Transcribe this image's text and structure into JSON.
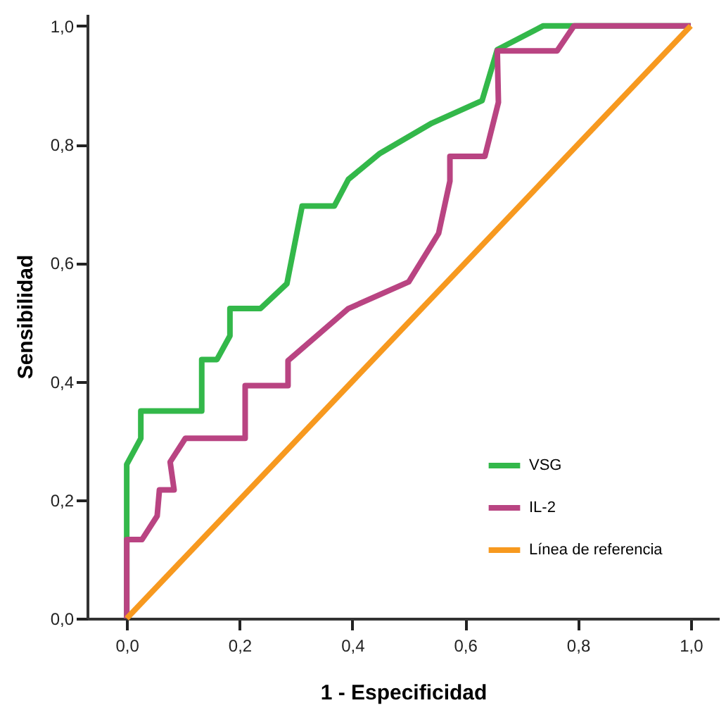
{
  "chart_data": {
    "type": "line",
    "xlabel": "1 - Especificidad",
    "ylabel": "Sensibilidad",
    "xlim": [
      -0.07,
      1.05
    ],
    "ylim": [
      0,
      1.02
    ],
    "xticks": [
      {
        "value": 0,
        "label": "0,0"
      },
      {
        "value": 0.2,
        "label": "0,2"
      },
      {
        "value": 0.4,
        "label": "0,4"
      },
      {
        "value": 0.6,
        "label": "0,6"
      },
      {
        "value": 0.8,
        "label": "0,8"
      },
      {
        "value": 1,
        "label": "1,0"
      }
    ],
    "yticks": [
      {
        "value": 0,
        "label": "0,0"
      },
      {
        "value": 0.2,
        "label": "0,2"
      },
      {
        "value": 0.4,
        "label": "0,4"
      },
      {
        "value": 0.6,
        "label": "0,6"
      },
      {
        "value": 0.8,
        "label": "0,8"
      },
      {
        "value": 1,
        "label": "1,0"
      }
    ],
    "grid": false,
    "legend": "bottom right",
    "marker": "none",
    "line_style": "solid",
    "series": [
      {
        "name": "VSG",
        "color": "#33b84a",
        "x": [
          0,
          0,
          0.025,
          0.025,
          0.133,
          0.133,
          0.16,
          0.183,
          0.183,
          0.237,
          0.284,
          0.311,
          0.368,
          0.393,
          0.449,
          0.541,
          0.63,
          0.657,
          0.738,
          1
        ],
        "values": [
          0,
          0.26,
          0.304,
          0.35,
          0.35,
          0.437,
          0.437,
          0.477,
          0.523,
          0.523,
          0.565,
          0.696,
          0.696,
          0.741,
          0.785,
          0.836,
          0.874,
          0.96,
          1,
          1
        ]
      },
      {
        "name": "IL-2",
        "color": "#b94482",
        "x": [
          0,
          0,
          0.027,
          0.054,
          0.058,
          0.084,
          0.077,
          0.104,
          0.21,
          0.21,
          0.286,
          0.286,
          0.393,
          0.5,
          0.553,
          0.573,
          0.573,
          0.635,
          0.659,
          0.657,
          0.763,
          0.793,
          1
        ],
        "values": [
          0,
          0.133,
          0.133,
          0.173,
          0.217,
          0.217,
          0.264,
          0.304,
          0.304,
          0.393,
          0.393,
          0.435,
          0.523,
          0.568,
          0.65,
          0.738,
          0.78,
          0.78,
          0.871,
          0.958,
          0.958,
          1,
          1
        ]
      },
      {
        "name": "Línea de referencia",
        "color": "#f7991f",
        "x": [
          0,
          1
        ],
        "values": [
          0,
          1
        ]
      }
    ]
  }
}
